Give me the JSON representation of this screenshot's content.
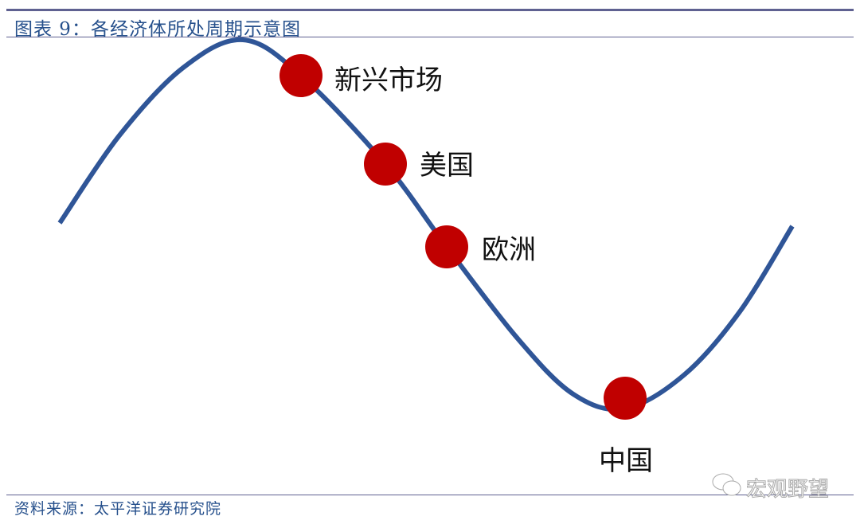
{
  "header": {
    "title": "图表 9：各经济体所处周期示意图"
  },
  "diagram": {
    "curve_color": "#2f5597",
    "dot_color": "#c00000",
    "points": [
      {
        "label": "新兴市场"
      },
      {
        "label": "美国"
      },
      {
        "label": "欧洲"
      },
      {
        "label": "中国"
      }
    ]
  },
  "footer": {
    "source": "资料来源：太平洋证券研究院",
    "watermark": "宏观野望",
    "watermark_icon": "wechat-icon"
  }
}
